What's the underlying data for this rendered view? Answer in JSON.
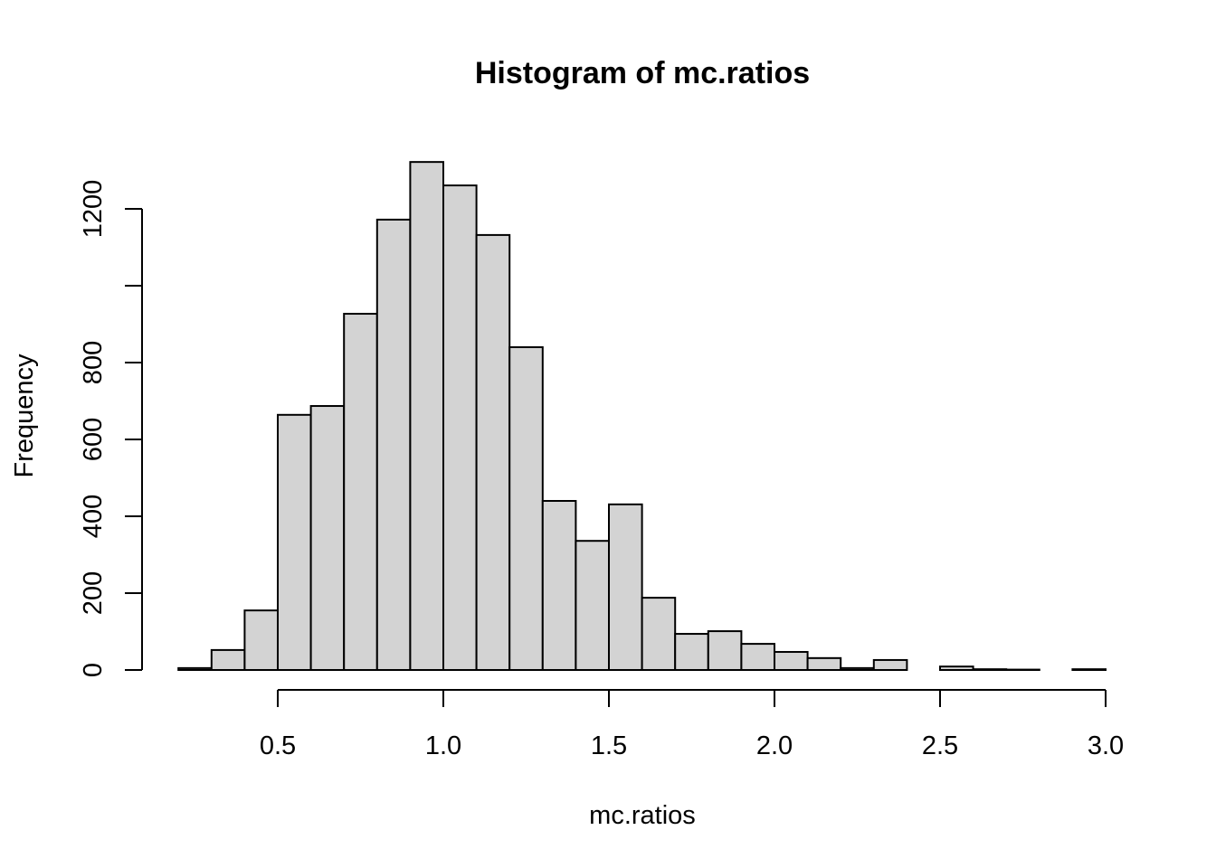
{
  "chart_data": {
    "type": "bar",
    "title": "Histogram of mc.ratios",
    "xlabel": "mc.ratios",
    "ylabel": "Frequency",
    "bin_edges": [
      0.2,
      0.3,
      0.4,
      0.5,
      0.6,
      0.7,
      0.8,
      0.9,
      1.0,
      1.1,
      1.2,
      1.3,
      1.4,
      1.5,
      1.6,
      1.7,
      1.8,
      1.9,
      2.0,
      2.1,
      2.2,
      2.3,
      2.4,
      2.5,
      2.6,
      2.7,
      2.8,
      2.9,
      3.0
    ],
    "values": [
      5,
      52,
      155,
      664,
      687,
      927,
      1172,
      1322,
      1261,
      1132,
      840,
      440,
      336,
      431,
      188,
      94,
      101,
      68,
      47,
      31,
      5,
      26,
      0,
      9,
      2,
      1,
      0,
      2
    ],
    "xlim": [
      0.2,
      3.0
    ],
    "ylim": [
      0,
      1322
    ],
    "x_ticks": [
      0.5,
      1.0,
      1.5,
      2.0,
      2.5,
      3.0
    ],
    "x_tick_labels": [
      "0.5",
      "1.0",
      "1.5",
      "2.0",
      "2.5",
      "3.0"
    ],
    "y_ticks": [
      0,
      200,
      400,
      600,
      800,
      1000,
      1200
    ],
    "y_tick_labels": [
      "0",
      "200",
      "400",
      "600",
      "800",
      "",
      "1200"
    ],
    "bar_fill": "#d3d3d3",
    "bar_stroke": "#000000",
    "grid": false
  }
}
